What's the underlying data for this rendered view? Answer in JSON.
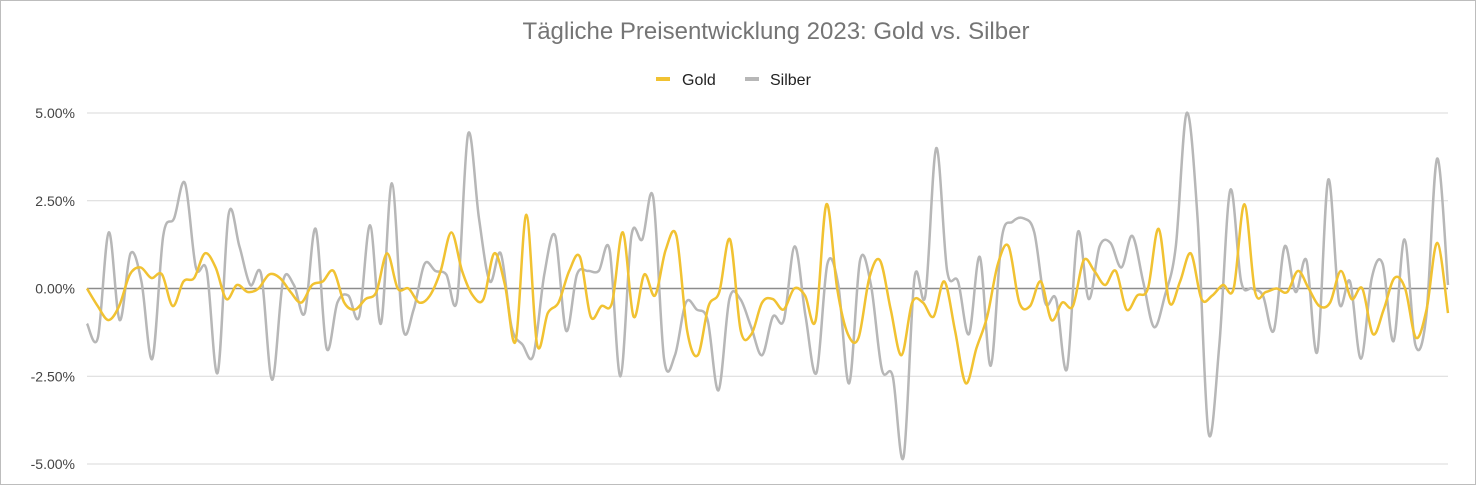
{
  "chart_data": {
    "type": "line",
    "title": "Tägliche Preisentwicklung 2023: Gold vs. Silber",
    "xlabel": "",
    "ylabel": "",
    "y_ticks": [
      "-5.00%",
      "-2.50%",
      "0.00%",
      "2.50%",
      "5.00%"
    ],
    "y_tick_values": [
      -5,
      -2.5,
      0,
      2.5,
      5
    ],
    "ylim": [
      -5,
      5
    ],
    "grid": true,
    "legend_position": "top",
    "x_count": 250,
    "series": [
      {
        "name": "Gold",
        "color": "#F1C232",
        "values": [
          0,
          -0.5,
          -0.9,
          -0.5,
          0.4,
          0.6,
          0.3,
          0.4,
          -0.5,
          0.2,
          0.3,
          1.0,
          0.6,
          -0.3,
          0.1,
          -0.1,
          0,
          0.4,
          0.3,
          -0.1,
          -0.4,
          0.1,
          0.2,
          0.5,
          -0.4,
          -0.6,
          -0.3,
          -0.1,
          1.0,
          0,
          0,
          -0.4,
          -0.2,
          0.5,
          1.6,
          0.5,
          -0.2,
          -0.3,
          1.0,
          0.1,
          -1.5,
          2.1,
          -1.6,
          -0.7,
          -0.4,
          0.5,
          0.9,
          -0.8,
          -0.5,
          -0.4,
          1.6,
          -0.8,
          0.4,
          -0.2,
          1.1,
          1.5,
          -1.2,
          -1.9,
          -0.5,
          -0.1,
          1.4,
          -1.2,
          -1.3,
          -0.4,
          -0.3,
          -0.6,
          0,
          -0.2,
          -0.9,
          2.4,
          0,
          -1.3,
          -1.4,
          0.3,
          0.8,
          -0.6,
          -1.9,
          -0.4,
          -0.4,
          -0.8,
          0.2,
          -1.2,
          -2.7,
          -1.7,
          -0.8,
          0.7,
          1.2,
          -0.4,
          -0.5,
          0.2,
          -0.9,
          -0.4,
          -0.5,
          0.8,
          0.5,
          0.1,
          0.5,
          -0.6,
          -0.2,
          0,
          1.7,
          -0.4,
          0.2,
          1.0,
          -0.3,
          -0.2,
          0.1,
          0,
          2.4,
          -0.1,
          -0.1,
          0,
          -0.1,
          0.5,
          0,
          -0.5,
          -0.4,
          0.5,
          -0.3,
          0,
          -1.3,
          -0.6,
          0.3,
          0,
          -1.4,
          -0.6,
          1.3,
          -0.7
        ]
      },
      {
        "name": "Silber",
        "color": "#B7B7B7",
        "values": [
          -1.0,
          -1.4,
          1.6,
          -0.9,
          1.0,
          0.2,
          -2.0,
          1.5,
          2.0,
          3.0,
          0.6,
          0.5,
          -2.4,
          2.1,
          1.2,
          0.1,
          0.4,
          -2.6,
          0.2,
          0.1,
          -0.7,
          1.7,
          -1.7,
          -0.4,
          -0.2,
          -0.8,
          1.8,
          -1.0,
          3.0,
          -1.1,
          -0.6,
          0.7,
          0.5,
          0.4,
          -0.3,
          4.4,
          2.0,
          0.2,
          1.0,
          -1.1,
          -1.6,
          -1.9,
          0.4,
          1.5,
          -1.2,
          0.4,
          0.5,
          0.5,
          1.1,
          -2.5,
          1.5,
          1.4,
          2.6,
          -2.0,
          -1.9,
          -0.4,
          -0.6,
          -0.9,
          -2.9,
          -0.3,
          -0.3,
          -1.1,
          -1.9,
          -0.8,
          -0.9,
          1.2,
          -0.8,
          -2.4,
          0.7,
          0.1,
          -2.7,
          0.8,
          0.1,
          -2.3,
          -2.5,
          -4.8,
          0.3,
          -0.2,
          4.0,
          0.5,
          0.2,
          -1.3,
          0.9,
          -2.2,
          1.4,
          1.9,
          2.0,
          1.6,
          -0.4,
          -0.3,
          -2.3,
          1.6,
          -0.3,
          1.2,
          1.3,
          0.6,
          1.5,
          0.2,
          -1.1,
          -0.2,
          1.2,
          5.0,
          2.0,
          -4.1,
          -1.6,
          2.8,
          0.2,
          0,
          -0.2,
          -1.2,
          1.2,
          -0.1,
          0.8,
          -1.8,
          3.1,
          -0.4,
          0.2,
          -2.0,
          0.3,
          0.7,
          -1.5,
          1.4,
          -1.6,
          -0.8,
          3.7,
          0.1
        ]
      }
    ]
  }
}
